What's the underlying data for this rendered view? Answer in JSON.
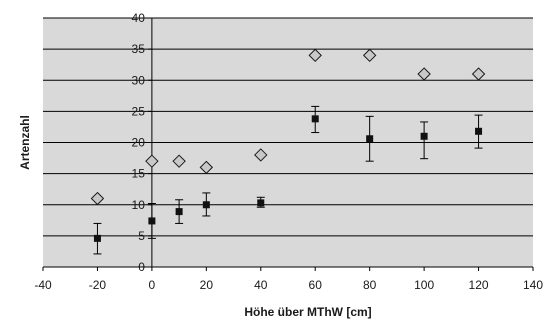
{
  "chart_data": {
    "type": "scatter",
    "title": "",
    "xlabel": "Höhe über MThW [cm]",
    "ylabel": "Artenzahl",
    "xlim": [
      -40,
      140
    ],
    "ylim": [
      0,
      40
    ],
    "x_ticks": [
      -40,
      -20,
      0,
      20,
      40,
      60,
      80,
      100,
      120,
      140
    ],
    "y_ticks": [
      0,
      5,
      10,
      15,
      20,
      25,
      30,
      35,
      40
    ],
    "grid": "horizontal",
    "legend": "none",
    "background_color": "#d9d9d9",
    "series": [
      {
        "marker": "diamond",
        "color": "#c8c8c8",
        "x": [
          -20,
          0,
          10,
          20,
          40,
          60,
          80,
          100,
          120
        ],
        "y": [
          11,
          17,
          17,
          16,
          18,
          34,
          34,
          31,
          31
        ]
      },
      {
        "marker": "square",
        "color": "#111111",
        "x": [
          -20,
          0,
          10,
          20,
          40,
          60,
          80,
          100,
          120
        ],
        "y": [
          4.6,
          7.4,
          8.9,
          10.0,
          10.3,
          23.8,
          20.6,
          21.0,
          21.8
        ],
        "error_low": [
          2.1,
          4.6,
          7.0,
          8.2,
          9.6,
          21.6,
          17.0,
          17.4,
          19.1
        ],
        "error_high": [
          7.0,
          10.2,
          10.8,
          11.9,
          11.2,
          25.8,
          24.2,
          23.3,
          24.4
        ]
      }
    ]
  }
}
